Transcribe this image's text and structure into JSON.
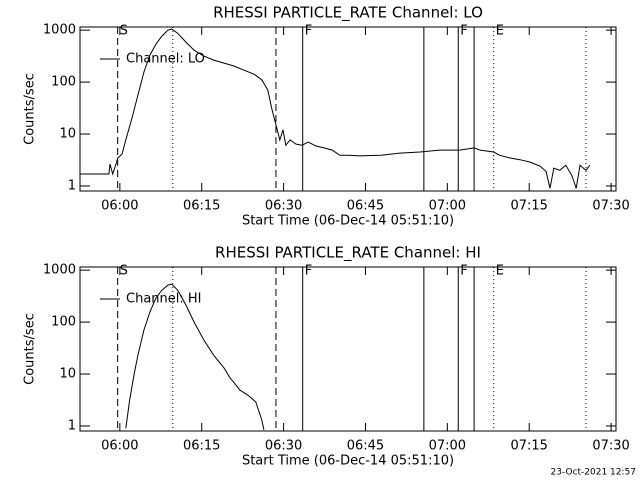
{
  "chart_data": [
    {
      "type": "line",
      "title": "RHESSI PARTICLE_RATE Channel: LO",
      "xlabel": "Start Time (06-Dec-14 05:51:10)",
      "ylabel": "Counts/sec",
      "log_y": true,
      "legend": "top-left",
      "xlim": [
        352.7,
        450.9
      ],
      "ylim": [
        0.8,
        1150
      ],
      "xticks": [
        {
          "value": 360,
          "label": "06:00"
        },
        {
          "value": 375,
          "label": "06:15"
        },
        {
          "value": 390,
          "label": "06:30"
        },
        {
          "value": 405,
          "label": "06:45"
        },
        {
          "value": 420,
          "label": "07:00"
        },
        {
          "value": 435,
          "label": "07:15"
        },
        {
          "value": 450,
          "label": "07:30"
        }
      ],
      "yticks": [
        1,
        10,
        100,
        1000
      ],
      "markers": [
        {
          "x": 359.6,
          "style": "dashed",
          "label": "S"
        },
        {
          "x": 388.6,
          "style": "dashed"
        },
        {
          "x": 369.7,
          "style": "dotted"
        },
        {
          "x": 393.5,
          "style": "solid",
          "label": "F"
        },
        {
          "x": 415.7,
          "style": "solid"
        },
        {
          "x": 422.0,
          "style": "solid",
          "label": "F"
        },
        {
          "x": 424.9,
          "style": "solid"
        },
        {
          "x": 428.5,
          "style": "dotted",
          "label": "E"
        },
        {
          "x": 445.4,
          "style": "dotted"
        }
      ],
      "x": [
        352.7,
        358.0,
        358.2,
        358.7,
        359.3,
        359.6,
        360.4,
        361.1,
        362.2,
        363.3,
        364.4,
        365.5,
        366.6,
        367.7,
        368.8,
        369.5,
        370.6,
        372.1,
        373.6,
        375.4,
        377.2,
        379.1,
        380.9,
        382.7,
        384.6,
        386.0,
        387.1,
        387.9,
        388.6,
        389.3,
        389.9,
        390.4,
        391.2,
        392.3,
        393.4,
        394.5,
        395.9,
        397.4,
        398.9,
        400.3,
        401.8,
        404.0,
        407.7,
        411.3,
        415.0,
        418.6,
        422.3,
        424.9,
        426.0,
        428.5,
        429.6,
        431.5,
        433.3,
        435.1,
        437.0,
        438.1,
        438.8,
        439.5,
        440.6,
        441.7,
        442.8,
        443.6,
        444.3,
        445.4,
        446.1
      ],
      "series": [
        {
          "name": "Channel: LO",
          "color": "#000000",
          "values": [
            1.7,
            1.7,
            2.65,
            1.7,
            2.65,
            3.45,
            4.1,
            7.7,
            20,
            56,
            156,
            330,
            537,
            767,
            1000,
            1050,
            874,
            589,
            412,
            316,
            265,
            232,
            204,
            170,
            142,
            110,
            70,
            29,
            15,
            7.7,
            12,
            6.1,
            7.7,
            6.4,
            6.1,
            7,
            5.9,
            5.4,
            4.9,
            3.9,
            3.9,
            3.8,
            3.9,
            4.3,
            4.5,
            4.9,
            4.9,
            5.4,
            4.9,
            4.5,
            3.9,
            3.45,
            3.2,
            2.9,
            2.4,
            1.9,
            0.9,
            2.2,
            2,
            2.5,
            1.6,
            0.9,
            2.5,
            2,
            2.5
          ]
        }
      ]
    },
    {
      "type": "line",
      "title": "RHESSI PARTICLE_RATE Channel: HI",
      "xlabel": "Start Time (06-Dec-14 05:51:10)",
      "ylabel": "Counts/sec",
      "log_y": true,
      "legend": "top-left",
      "xlim": [
        352.7,
        450.9
      ],
      "ylim": [
        0.8,
        1150
      ],
      "xticks": [
        {
          "value": 360,
          "label": "06:00"
        },
        {
          "value": 375,
          "label": "06:15"
        },
        {
          "value": 390,
          "label": "06:30"
        },
        {
          "value": 405,
          "label": "06:45"
        },
        {
          "value": 420,
          "label": "07:00"
        },
        {
          "value": 435,
          "label": "07:15"
        },
        {
          "value": 450,
          "label": "07:30"
        }
      ],
      "yticks": [
        1,
        10,
        100,
        1000
      ],
      "markers": [
        {
          "x": 359.6,
          "style": "dashed",
          "label": "S"
        },
        {
          "x": 388.6,
          "style": "dashed"
        },
        {
          "x": 369.7,
          "style": "dotted"
        },
        {
          "x": 393.5,
          "style": "solid",
          "label": "F"
        },
        {
          "x": 415.7,
          "style": "solid"
        },
        {
          "x": 422.0,
          "style": "solid",
          "label": "F"
        },
        {
          "x": 424.9,
          "style": "solid"
        },
        {
          "x": 428.5,
          "style": "dotted",
          "label": "E"
        },
        {
          "x": 445.4,
          "style": "dotted"
        }
      ],
      "x": [
        361.1,
        361.8,
        362.6,
        363.3,
        364.4,
        365.5,
        366.6,
        367.7,
        368.8,
        369.5,
        370.6,
        372.1,
        373.6,
        375.4,
        377.2,
        379.1,
        380.2,
        381.3,
        382.0,
        383.5,
        384.9,
        386.0,
        386.4
      ],
      "series": [
        {
          "name": "Channel: HI",
          "color": "#000000",
          "values": [
            0.9,
            3.2,
            9.6,
            23,
            70,
            156,
            290,
            412,
            516,
            537,
            412,
            213,
            100,
            45,
            23,
            13,
            8.4,
            6.1,
            4.9,
            3.9,
            2.9,
            1.3,
            0.84
          ]
        }
      ]
    }
  ],
  "footer": "23-Oct-2021 12:57"
}
